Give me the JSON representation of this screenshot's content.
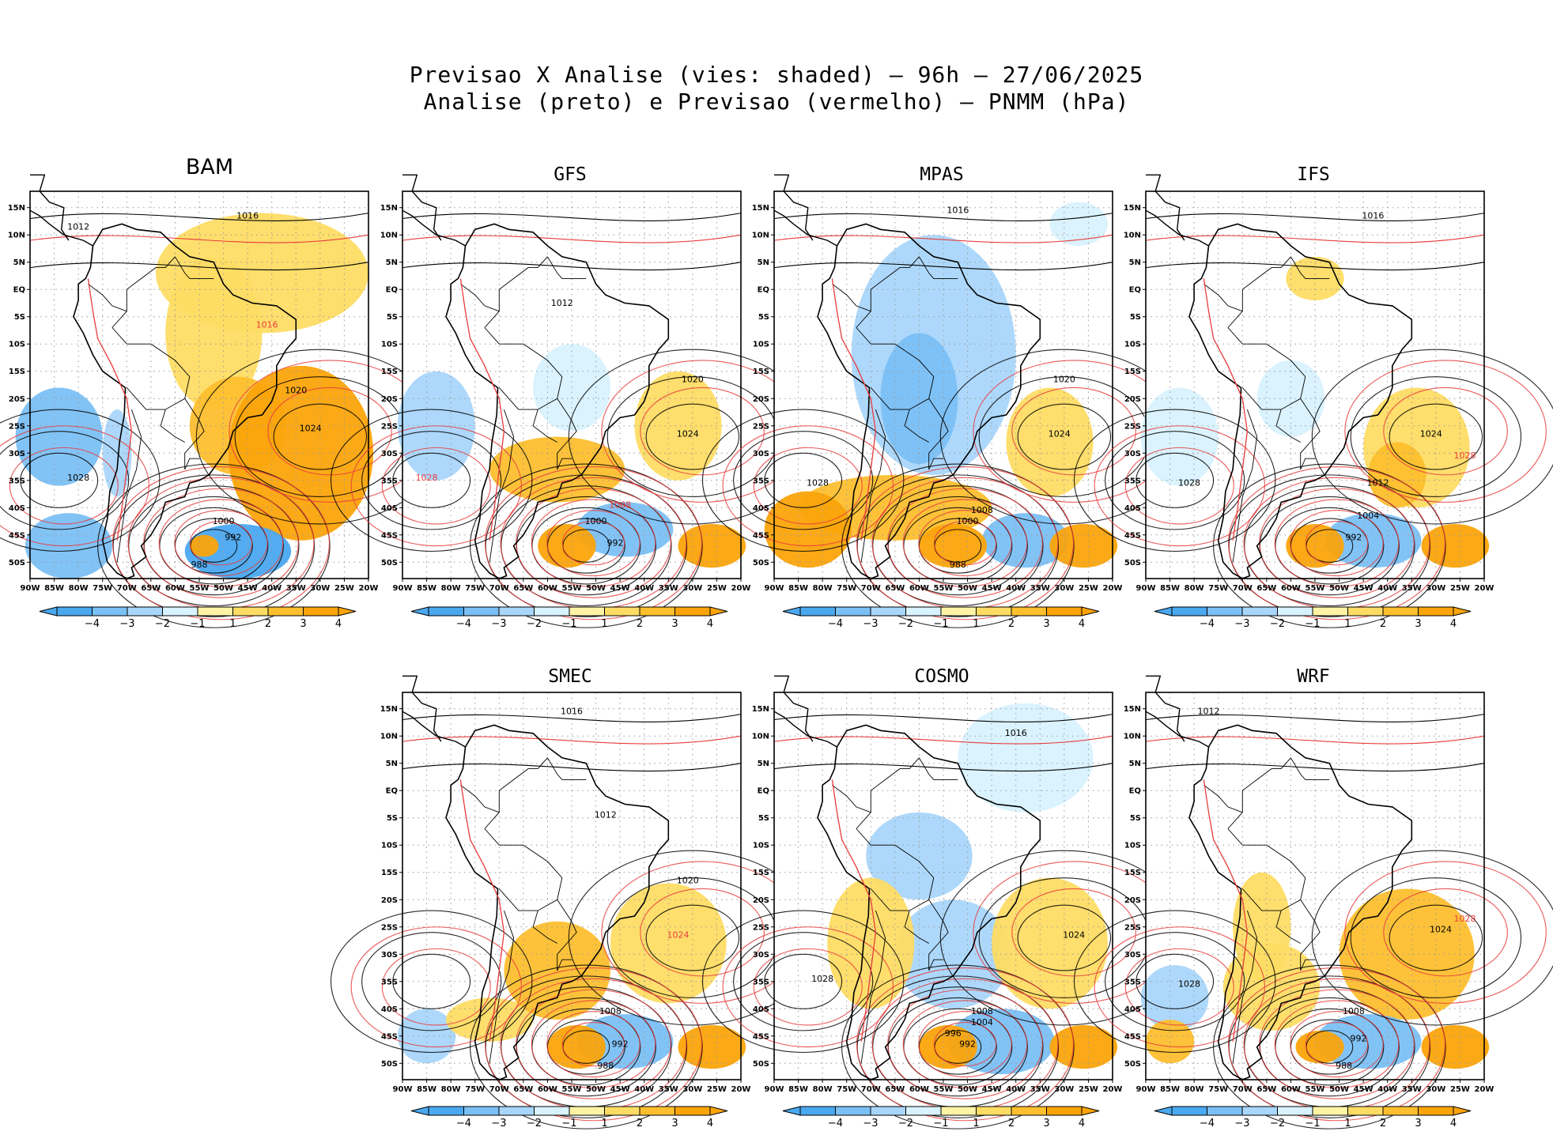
{
  "title_line1": "Previsao X Analise (vies: shaded) – 96h – 27/06/2025",
  "title_line2": "Analise (preto) e Previsao (vermelho) – PNMM (hPa)",
  "axes": {
    "lon_ticks": [
      "90W",
      "85W",
      "80W",
      "75W",
      "70W",
      "65W",
      "60W",
      "55W",
      "50W",
      "45W",
      "40W",
      "35W",
      "30W",
      "25W",
      "20W"
    ],
    "lat_ticks": [
      "15N",
      "10N",
      "5N",
      "EQ",
      "5S",
      "10S",
      "15S",
      "20S",
      "25S",
      "30S",
      "35S",
      "40S",
      "45S",
      "50S"
    ],
    "lon_range": [
      -90,
      -20
    ],
    "lat_range": [
      -53,
      18
    ]
  },
  "colorbar": {
    "labels": [
      "-4",
      "-3",
      "-2",
      "-1",
      "1",
      "2",
      "3",
      "4"
    ],
    "colors": [
      "#4aa8f0",
      "#7bc0f5",
      "#a9d6fb",
      "#d8f2fe",
      "#ffffff",
      "#fff4a6",
      "#fedc64",
      "#fdbf2e",
      "#fba40a"
    ]
  },
  "colors": {
    "analysis": "#000000",
    "forecast": "#e83c3c",
    "coast": "#000000"
  },
  "chart_data": [
    {
      "type": "heatmap",
      "model": "BAM",
      "blobs": [
        {
          "lon": -42,
          "lat": 3,
          "rx": 22,
          "ry": 11,
          "level": 2
        },
        {
          "lon": -52,
          "lat": -8,
          "rx": 10,
          "ry": 14,
          "level": 2
        },
        {
          "lon": -34,
          "lat": -30,
          "rx": 15,
          "ry": 16,
          "level": 4
        },
        {
          "lon": -47,
          "lat": -25,
          "rx": 10,
          "ry": 9,
          "level": 3
        },
        {
          "lon": -84,
          "lat": -27,
          "rx": 9,
          "ry": 9,
          "level": -3
        },
        {
          "lon": -82,
          "lat": -47,
          "rx": 9,
          "ry": 6,
          "level": -3
        },
        {
          "lon": -47,
          "lat": -48,
          "rx": 11,
          "ry": 5,
          "level": -4
        },
        {
          "lon": -54,
          "lat": -47,
          "rx": 3,
          "ry": 2,
          "level": 4
        },
        {
          "lon": -72,
          "lat": -30,
          "rx": 3,
          "ry": 8,
          "level": -2
        }
      ],
      "labels": [
        {
          "lon": -80,
          "lat": 11,
          "text": "1012",
          "color": "analysis"
        },
        {
          "lon": -45,
          "lat": 13,
          "text": "1016",
          "color": "analysis"
        },
        {
          "lon": -41,
          "lat": -7,
          "text": "1016",
          "color": "forecast"
        },
        {
          "lon": -35,
          "lat": -19,
          "text": "1020",
          "color": "analysis"
        },
        {
          "lon": -32,
          "lat": -26,
          "text": "1024",
          "color": "analysis"
        },
        {
          "lon": -80,
          "lat": -35,
          "text": "1028",
          "color": "analysis"
        },
        {
          "lon": -50,
          "lat": -43,
          "text": "1000",
          "color": "analysis"
        },
        {
          "lon": -48,
          "lat": -46,
          "text": "992",
          "color": "analysis"
        },
        {
          "lon": -55,
          "lat": -51,
          "text": "988",
          "color": "analysis"
        }
      ]
    },
    {
      "type": "heatmap",
      "model": "GFS",
      "blobs": [
        {
          "lon": -58,
          "lat": -33,
          "rx": 14,
          "ry": 6,
          "level": 3
        },
        {
          "lon": -33,
          "lat": -25,
          "rx": 9,
          "ry": 10,
          "level": 2
        },
        {
          "lon": -56,
          "lat": -47,
          "rx": 6,
          "ry": 4,
          "level": 4
        },
        {
          "lon": -26,
          "lat": -47,
          "rx": 7,
          "ry": 4,
          "level": 4
        },
        {
          "lon": -83,
          "lat": -25,
          "rx": 8,
          "ry": 10,
          "level": -2
        },
        {
          "lon": -44,
          "lat": -44,
          "rx": 10,
          "ry": 5,
          "level": -3
        },
        {
          "lon": -55,
          "lat": -18,
          "rx": 8,
          "ry": 8,
          "level": -1
        }
      ],
      "labels": [
        {
          "lon": -57,
          "lat": -3,
          "text": "1012",
          "color": "analysis"
        },
        {
          "lon": -30,
          "lat": -17,
          "text": "1020",
          "color": "analysis"
        },
        {
          "lon": -31,
          "lat": -27,
          "text": "1024",
          "color": "analysis"
        },
        {
          "lon": -85,
          "lat": -35,
          "text": "1028",
          "color": "forecast"
        },
        {
          "lon": -50,
          "lat": -43,
          "text": "1000",
          "color": "analysis"
        },
        {
          "lon": -46,
          "lat": -47,
          "text": "992",
          "color": "analysis"
        },
        {
          "lon": -45,
          "lat": -40,
          "text": "1008",
          "color": "forecast"
        }
      ]
    },
    {
      "type": "heatmap",
      "model": "MPAS",
      "blobs": [
        {
          "lon": -57,
          "lat": -12,
          "rx": 17,
          "ry": 22,
          "level": -2
        },
        {
          "lon": -60,
          "lat": -20,
          "rx": 8,
          "ry": 12,
          "level": -3
        },
        {
          "lon": -65,
          "lat": -40,
          "rx": 20,
          "ry": 6,
          "level": 3
        },
        {
          "lon": -83,
          "lat": -44,
          "rx": 9,
          "ry": 7,
          "level": 4
        },
        {
          "lon": -53,
          "lat": -47,
          "rx": 7,
          "ry": 4,
          "level": 4
        },
        {
          "lon": -33,
          "lat": -28,
          "rx": 9,
          "ry": 10,
          "level": 2
        },
        {
          "lon": -26,
          "lat": -47,
          "rx": 7,
          "ry": 4,
          "level": 4
        },
        {
          "lon": -38,
          "lat": -46,
          "rx": 9,
          "ry": 5,
          "level": -3
        },
        {
          "lon": -27,
          "lat": 12,
          "rx": 6,
          "ry": 4,
          "level": -1
        }
      ],
      "labels": [
        {
          "lon": -52,
          "lat": 14,
          "text": "1016",
          "color": "analysis"
        },
        {
          "lon": -30,
          "lat": -17,
          "text": "1020",
          "color": "analysis"
        },
        {
          "lon": -31,
          "lat": -27,
          "text": "1024",
          "color": "analysis"
        },
        {
          "lon": -81,
          "lat": -36,
          "text": "1028",
          "color": "analysis"
        },
        {
          "lon": -50,
          "lat": -43,
          "text": "1000",
          "color": "analysis"
        },
        {
          "lon": -47,
          "lat": -41,
          "text": "1008",
          "color": "analysis"
        },
        {
          "lon": -52,
          "lat": -51,
          "text": "988",
          "color": "analysis"
        }
      ]
    },
    {
      "type": "heatmap",
      "model": "IFS",
      "blobs": [
        {
          "lon": -34,
          "lat": -29,
          "rx": 11,
          "ry": 11,
          "level": 2
        },
        {
          "lon": -38,
          "lat": -34,
          "rx": 6,
          "ry": 6,
          "level": 3
        },
        {
          "lon": -55,
          "lat": -47,
          "rx": 6,
          "ry": 4,
          "level": 4
        },
        {
          "lon": -26,
          "lat": -47,
          "rx": 7,
          "ry": 4,
          "level": 4
        },
        {
          "lon": -43,
          "lat": -46,
          "rx": 10,
          "ry": 5,
          "level": -3
        },
        {
          "lon": -83,
          "lat": -27,
          "rx": 8,
          "ry": 9,
          "level": -1
        },
        {
          "lon": -60,
          "lat": -20,
          "rx": 7,
          "ry": 7,
          "level": -1
        },
        {
          "lon": -55,
          "lat": 2,
          "rx": 6,
          "ry": 4,
          "level": 2
        }
      ],
      "labels": [
        {
          "lon": -43,
          "lat": 13,
          "text": "1016",
          "color": "analysis"
        },
        {
          "lon": -31,
          "lat": -27,
          "text": "1024",
          "color": "analysis"
        },
        {
          "lon": -24,
          "lat": -31,
          "text": "1028",
          "color": "forecast"
        },
        {
          "lon": -81,
          "lat": -36,
          "text": "1028",
          "color": "analysis"
        },
        {
          "lon": -42,
          "lat": -36,
          "text": "1012",
          "color": "analysis"
        },
        {
          "lon": -47,
          "lat": -46,
          "text": "992",
          "color": "analysis"
        },
        {
          "lon": -44,
          "lat": -42,
          "text": "1004",
          "color": "analysis"
        }
      ]
    },
    {
      "type": "heatmap",
      "model": "SMEC",
      "blobs": [
        {
          "lon": -58,
          "lat": -33,
          "rx": 11,
          "ry": 9,
          "level": 3
        },
        {
          "lon": -35,
          "lat": -28,
          "rx": 12,
          "ry": 11,
          "level": 2
        },
        {
          "lon": -54,
          "lat": -47,
          "rx": 6,
          "ry": 4,
          "level": 4
        },
        {
          "lon": -26,
          "lat": -47,
          "rx": 7,
          "ry": 4,
          "level": 4
        },
        {
          "lon": -44,
          "lat": -46,
          "rx": 10,
          "ry": 5,
          "level": -3
        },
        {
          "lon": -85,
          "lat": -45,
          "rx": 6,
          "ry": 5,
          "level": -2
        },
        {
          "lon": -72,
          "lat": -42,
          "rx": 9,
          "ry": 4,
          "level": 2
        }
      ],
      "labels": [
        {
          "lon": -55,
          "lat": 14,
          "text": "1016",
          "color": "analysis"
        },
        {
          "lon": -48,
          "lat": -5,
          "text": "1012",
          "color": "analysis"
        },
        {
          "lon": -31,
          "lat": -17,
          "text": "1020",
          "color": "analysis"
        },
        {
          "lon": -33,
          "lat": -27,
          "text": "1024",
          "color": "forecast"
        },
        {
          "lon": -47,
          "lat": -41,
          "text": "1008",
          "color": "analysis"
        },
        {
          "lon": -45,
          "lat": -47,
          "text": "992",
          "color": "analysis"
        },
        {
          "lon": -48,
          "lat": -51,
          "text": "988",
          "color": "analysis"
        }
      ]
    },
    {
      "type": "heatmap",
      "model": "COSMO",
      "blobs": [
        {
          "lon": -53,
          "lat": -30,
          "rx": 12,
          "ry": 10,
          "level": -2
        },
        {
          "lon": -33,
          "lat": -28,
          "rx": 12,
          "ry": 12,
          "level": 2
        },
        {
          "lon": -60,
          "lat": -12,
          "rx": 11,
          "ry": 8,
          "level": -2
        },
        {
          "lon": -43,
          "lat": -46,
          "rx": 11,
          "ry": 6,
          "level": -3
        },
        {
          "lon": -54,
          "lat": -47,
          "rx": 6,
          "ry": 4,
          "level": 4
        },
        {
          "lon": -26,
          "lat": -47,
          "rx": 7,
          "ry": 4,
          "level": 4
        },
        {
          "lon": -70,
          "lat": -28,
          "rx": 9,
          "ry": 12,
          "level": 2
        },
        {
          "lon": -38,
          "lat": 6,
          "rx": 14,
          "ry": 10,
          "level": -1
        }
      ],
      "labels": [
        {
          "lon": -40,
          "lat": 10,
          "text": "1016",
          "color": "analysis"
        },
        {
          "lon": -28,
          "lat": -27,
          "text": "1024",
          "color": "analysis"
        },
        {
          "lon": -80,
          "lat": -35,
          "text": "1028",
          "color": "analysis"
        },
        {
          "lon": -47,
          "lat": -41,
          "text": "1008",
          "color": "analysis"
        },
        {
          "lon": -47,
          "lat": -43,
          "text": "1004",
          "color": "analysis"
        },
        {
          "lon": -50,
          "lat": -47,
          "text": "992",
          "color": "analysis"
        },
        {
          "lon": -53,
          "lat": -45,
          "text": "996",
          "color": "analysis"
        }
      ]
    },
    {
      "type": "heatmap",
      "model": "WRF",
      "blobs": [
        {
          "lon": -36,
          "lat": -30,
          "rx": 14,
          "ry": 12,
          "level": 3
        },
        {
          "lon": -64,
          "lat": -36,
          "rx": 10,
          "ry": 8,
          "level": 2
        },
        {
          "lon": -44,
          "lat": -46,
          "rx": 11,
          "ry": 5,
          "level": -3
        },
        {
          "lon": -54,
          "lat": -47,
          "rx": 5,
          "ry": 3,
          "level": 4
        },
        {
          "lon": -26,
          "lat": -47,
          "rx": 7,
          "ry": 4,
          "level": 4
        },
        {
          "lon": -84,
          "lat": -38,
          "rx": 7,
          "ry": 6,
          "level": -2
        },
        {
          "lon": -85,
          "lat": -46,
          "rx": 5,
          "ry": 4,
          "level": 3
        },
        {
          "lon": -66,
          "lat": -25,
          "rx": 6,
          "ry": 10,
          "level": 2
        }
      ],
      "labels": [
        {
          "lon": -77,
          "lat": 14,
          "text": "1012",
          "color": "analysis"
        },
        {
          "lon": -29,
          "lat": -26,
          "text": "1024",
          "color": "analysis"
        },
        {
          "lon": -24,
          "lat": -24,
          "text": "1028",
          "color": "forecast"
        },
        {
          "lon": -81,
          "lat": -36,
          "text": "1028",
          "color": "analysis"
        },
        {
          "lon": -47,
          "lat": -41,
          "text": "1008",
          "color": "analysis"
        },
        {
          "lon": -46,
          "lat": -46,
          "text": "992",
          "color": "analysis"
        },
        {
          "lon": -49,
          "lat": -51,
          "text": "988",
          "color": "analysis"
        }
      ]
    }
  ]
}
